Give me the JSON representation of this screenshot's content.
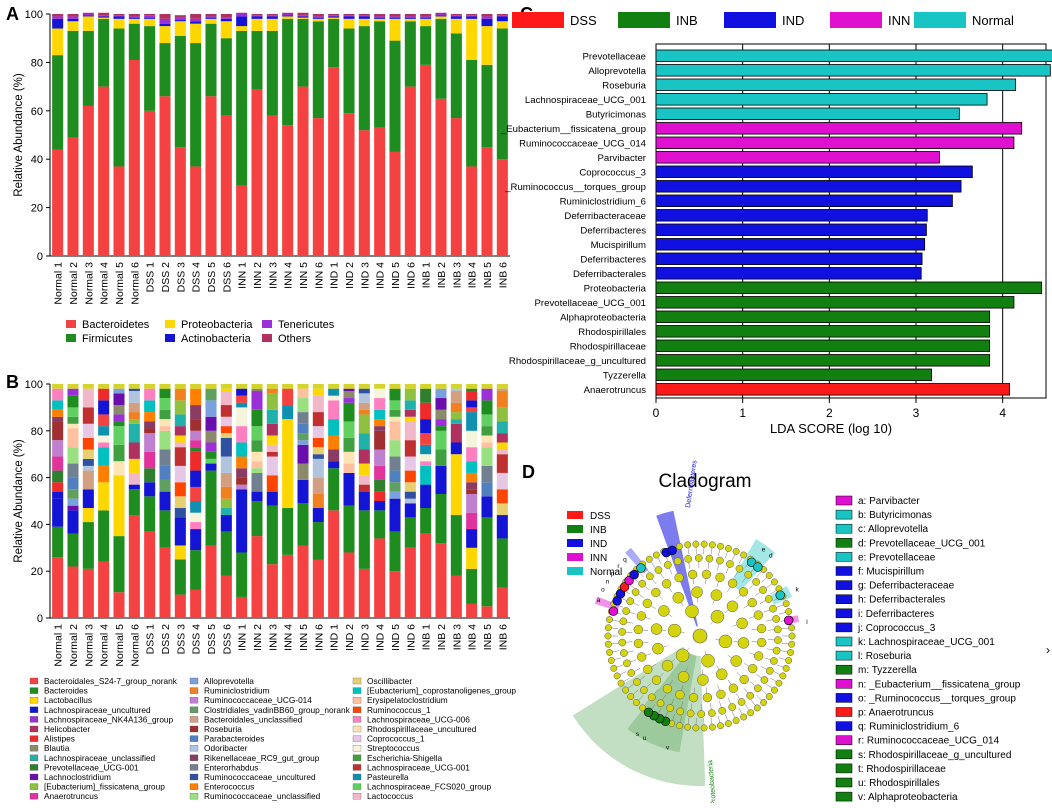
{
  "panels": {
    "A": "A",
    "B": "B",
    "C": "C",
    "D": "D"
  },
  "chart_data": [
    {
      "id": "A",
      "type": "bar",
      "stacked": true,
      "ylabel": "Relative Abundance (%)",
      "ylim": [
        0,
        100
      ],
      "yticks": [
        0,
        20,
        40,
        60,
        80,
        100
      ],
      "categories": [
        "Normal 1",
        "Normal 2",
        "Normal 3",
        "Normal 4",
        "Normal 5",
        "Normal 6",
        "DSS 1",
        "DSS 2",
        "DSS 3",
        "DSS 4",
        "DSS 5",
        "DSS 6",
        "INN 1",
        "INN 2",
        "INN 3",
        "INN 4",
        "INN 5",
        "INN 6",
        "IND 1",
        "IND 2",
        "IND 3",
        "IND 4",
        "IND 5",
        "IND 6",
        "INB 1",
        "INB 2",
        "INB 3",
        "INB 4",
        "INB 5",
        "INB 6"
      ],
      "series": [
        {
          "name": "Bacteroidetes",
          "color": "#f44141",
          "values": [
            44,
            49,
            62,
            70,
            37,
            81,
            60,
            66,
            45,
            37,
            66,
            58,
            29,
            69,
            58,
            54,
            70,
            57,
            78,
            59,
            52,
            53,
            43,
            70,
            79,
            65,
            57,
            37,
            45,
            40
          ]
        },
        {
          "name": "Firmicutes",
          "color": "#1e8c1e",
          "values": [
            39,
            44,
            31,
            28,
            57,
            15,
            35,
            22,
            46,
            51,
            30,
            32,
            64,
            24,
            35,
            44,
            28,
            40,
            20,
            35,
            43,
            44,
            46,
            27,
            16,
            33,
            35,
            44,
            34,
            54
          ]
        },
        {
          "name": "Proteobacteria",
          "color": "#ffd700",
          "values": [
            11,
            4,
            6,
            0.5,
            4,
            2,
            3,
            7,
            6,
            8,
            2,
            7,
            2,
            5,
            5,
            1,
            0.5,
            1,
            0.5,
            4,
            3,
            1,
            9,
            1,
            3,
            1,
            6,
            17,
            16,
            3
          ]
        },
        {
          "name": "Actinobacteria",
          "color": "#1414d4",
          "values": [
            4,
            1,
            0.5,
            0.5,
            1,
            0.5,
            0.5,
            1,
            0.5,
            1,
            0.5,
            1,
            4,
            1,
            1,
            0.5,
            0.5,
            0.5,
            0.5,
            1,
            1,
            0.5,
            0.5,
            0.5,
            0.5,
            0.5,
            1,
            1,
            3,
            2
          ]
        },
        {
          "name": "Tenericutes",
          "color": "#9b30d9",
          "values": [
            1,
            1,
            0.5,
            0.5,
            0.5,
            0.5,
            1,
            2,
            1,
            1,
            0.5,
            0.5,
            1,
            0.5,
            0.5,
            0.5,
            0.5,
            0.5,
            0.5,
            0.5,
            0.5,
            0.5,
            0.5,
            0.5,
            0.5,
            0.5,
            0.5,
            0.5,
            1,
            0.5
          ]
        },
        {
          "name": "Others",
          "color": "#b03060",
          "values": [
            1,
            1,
            0.5,
            1,
            0.5,
            1,
            0.5,
            2,
            1,
            2,
            1,
            1.5,
            0.5,
            0.5,
            0.5,
            0.5,
            1,
            1,
            0.5,
            0.5,
            0.5,
            1,
            1,
            1,
            1,
            0.5,
            0.5,
            0.5,
            1,
            0.5
          ]
        }
      ],
      "legend": [
        {
          "name": "Bacteroidetes",
          "color": "#f44141"
        },
        {
          "name": "Proteobacteria",
          "color": "#ffd700"
        },
        {
          "name": "Tenericutes",
          "color": "#9b30d9"
        },
        {
          "name": "Firmicutes",
          "color": "#1e8c1e"
        },
        {
          "name": "Actinobacteria",
          "color": "#1414d4"
        },
        {
          "name": "Others",
          "color": "#b03060"
        }
      ]
    },
    {
      "id": "B",
      "type": "bar",
      "stacked": true,
      "ylabel": "Relative Abundance (%)",
      "ylim": [
        0,
        100
      ],
      "yticks": [
        0,
        20,
        40,
        60,
        80,
        100
      ],
      "categories": [
        "Normal 1",
        "Normal 2",
        "Normal 3",
        "Normal 4",
        "Normal 5",
        "Normal 6",
        "DSS 1",
        "DSS 2",
        "DSS 3",
        "DSS 4",
        "DSS 5",
        "DSS 6",
        "INN 1",
        "INN 2",
        "INN 3",
        "INN 4",
        "INN 5",
        "INN 6",
        "IND 1",
        "IND 2",
        "IND 3",
        "IND 4",
        "IND 5",
        "IND 6",
        "INB 1",
        "INB 2",
        "INB 3",
        "INB 4",
        "INB 5",
        "INB 6"
      ],
      "bottom_red": [
        26,
        22,
        21,
        24,
        11,
        44,
        37,
        30,
        10,
        12,
        31,
        18,
        9,
        35,
        23,
        27,
        31,
        25,
        46,
        28,
        21,
        34,
        20,
        30,
        36,
        32,
        18,
        6,
        5,
        13
      ],
      "middle_green": [
        13,
        14,
        20,
        22,
        24,
        11,
        15,
        16,
        15,
        17,
        32,
        19,
        19,
        15,
        25,
        20,
        18,
        16,
        18,
        20,
        25,
        12,
        17,
        13,
        11,
        21,
        26,
        15,
        38,
        21
      ],
      "accent_layer": [
        {
          "color": "#ffd700",
          "values": [
            0,
            0,
            6,
            12,
            26,
            0,
            0,
            0,
            6,
            0,
            0,
            0,
            0,
            0,
            0,
            38,
            0,
            0,
            0,
            0,
            0,
            0,
            0,
            0,
            0,
            0,
            26,
            9,
            0,
            0
          ]
        },
        {
          "color": "#1414d4",
          "values": [
            12,
            10,
            8,
            0,
            0,
            2,
            6,
            8,
            12,
            9,
            3,
            7,
            27,
            4,
            6,
            0,
            10,
            6,
            3,
            14,
            8,
            4,
            14,
            6,
            10,
            12,
            5,
            8,
            9,
            10
          ]
        }
      ],
      "upper_total": 98,
      "legend": [
        {
          "name": "Bacteroidales_S24-7_group_norank",
          "color": "#f44141"
        },
        {
          "name": "Bacteroides",
          "color": "#1e8c1e"
        },
        {
          "name": "Lactobacillus",
          "color": "#ffd700"
        },
        {
          "name": "Lachnospiraceae_uncultured",
          "color": "#1414d4"
        },
        {
          "name": "Lachnospiraceae_NK4A136_group",
          "color": "#9b30d9"
        },
        {
          "name": "Helicobacter",
          "color": "#b03060"
        },
        {
          "name": "Alistipes",
          "color": "#ee2a2a"
        },
        {
          "name": "Blautia",
          "color": "#8b8b6b"
        },
        {
          "name": "Lachnospiraceae_unclassified",
          "color": "#20b2aa"
        },
        {
          "name": "Prevotellaceae_UCG-001",
          "color": "#2f7f2f"
        },
        {
          "name": "Lachnoclostridium",
          "color": "#6a0dad"
        },
        {
          "name": "[Eubacterium]_fissicatena_group",
          "color": "#90c040"
        },
        {
          "name": "Anaerotruncus",
          "color": "#e0349c"
        },
        {
          "name": "Alloprevotella",
          "color": "#7aa0e0"
        },
        {
          "name": "Ruminiclostridium",
          "color": "#f08020"
        },
        {
          "name": "Ruminococcaceae_UCG-014",
          "color": "#c080d0"
        },
        {
          "name": "Clostridiales_vadinBB60_group_norank",
          "color": "#5f9f5f"
        },
        {
          "name": "Bacteroidales_unclassified",
          "color": "#d2a080"
        },
        {
          "name": "Roseburia",
          "color": "#a03030"
        },
        {
          "name": "Parabacteroides",
          "color": "#5080c0"
        },
        {
          "name": "Odoribacter",
          "color": "#b0c4de"
        },
        {
          "name": "Rikenellaceae_RC9_gut_group",
          "color": "#8b3a62"
        },
        {
          "name": "Enterorhabdus",
          "color": "#708090"
        },
        {
          "name": "Ruminococcaceae_uncultured",
          "color": "#3050a0"
        },
        {
          "name": "Enterococcus",
          "color": "#ff7f00"
        },
        {
          "name": "Ruminococcaceae_unclassified",
          "color": "#98e080"
        },
        {
          "name": "Oscillibacter",
          "color": "#e8d070"
        },
        {
          "name": "[Eubacterium]_coprostanoligenes_group",
          "color": "#00c0c0"
        },
        {
          "name": "Erysipelatoclostridium",
          "color": "#ffc0a0"
        },
        {
          "name": "Ruminococcus_1",
          "color": "#ff4500"
        },
        {
          "name": "Lachnospiraceae_UCG-006",
          "color": "#ff80c0"
        },
        {
          "name": "Rhodospirillaceae_uncultured",
          "color": "#ffe4b5"
        },
        {
          "name": "Coprococcus_1",
          "color": "#e6c8e6"
        },
        {
          "name": "Streptococcus",
          "color": "#f5f5dc"
        },
        {
          "name": "Escherichia-Shigella",
          "color": "#40a040"
        },
        {
          "name": "Lachnospiraceae_UCG-001",
          "color": "#c03030"
        },
        {
          "name": "Pasteurella",
          "color": "#1090b0"
        },
        {
          "name": "Lachnospiraceae_FCS020_group",
          "color": "#60d060"
        },
        {
          "name": "Lactococcus",
          "color": "#f0b8c8"
        }
      ]
    },
    {
      "id": "C",
      "type": "bar",
      "orientation": "horizontal",
      "xlabel": "LDA SCORE (log 10)",
      "xlim": [
        0,
        4.5
      ],
      "xticks": [
        0,
        1,
        2,
        3,
        4
      ],
      "legend": [
        {
          "name": "DSS",
          "color": "#ff1a1a"
        },
        {
          "name": "INB",
          "color": "#118011"
        },
        {
          "name": "IND",
          "color": "#1010e0"
        },
        {
          "name": "INN",
          "color": "#e010d0"
        },
        {
          "name": "Normal",
          "color": "#19c4c4"
        }
      ],
      "bars": [
        {
          "label": "Prevotellaceae",
          "value": 4.58,
          "group": "Normal"
        },
        {
          "label": "Alloprevotella",
          "value": 4.55,
          "group": "Normal"
        },
        {
          "label": "Roseburia",
          "value": 4.15,
          "group": "Normal"
        },
        {
          "label": "Lachnospiraceae_UCG_001",
          "value": 3.82,
          "group": "Normal"
        },
        {
          "label": "Butyricimonas",
          "value": 3.5,
          "group": "Normal"
        },
        {
          "label": "_Eubacterium__fissicatena_group",
          "value": 4.22,
          "group": "INN"
        },
        {
          "label": "Ruminococcaceae_UCG_014",
          "value": 4.13,
          "group": "INN"
        },
        {
          "label": "Parvibacter",
          "value": 3.27,
          "group": "INN"
        },
        {
          "label": "Coprococcus_3",
          "value": 3.65,
          "group": "IND"
        },
        {
          "label": "_Ruminococcus__torques_group",
          "value": 3.52,
          "group": "IND"
        },
        {
          "label": "Ruminiclostridium_6",
          "value": 3.42,
          "group": "IND"
        },
        {
          "label": "Deferribacteraceae",
          "value": 3.13,
          "group": "IND"
        },
        {
          "label": "Deferribacteres",
          "value": 3.12,
          "group": "IND"
        },
        {
          "label": "Mucispirillum",
          "value": 3.1,
          "group": "IND"
        },
        {
          "label": "Deferribacteres",
          "value": 3.07,
          "group": "IND"
        },
        {
          "label": "Deferribacterales",
          "value": 3.06,
          "group": "IND"
        },
        {
          "label": "Proteobacteria",
          "value": 4.45,
          "group": "INB"
        },
        {
          "label": "Prevotellaceae_UCG_001",
          "value": 4.13,
          "group": "INB"
        },
        {
          "label": "Alphaproteobacteria",
          "value": 3.85,
          "group": "INB"
        },
        {
          "label": "Rhodospirillales",
          "value": 3.85,
          "group": "INB"
        },
        {
          "label": "Rhodospirillaceae",
          "value": 3.85,
          "group": "INB"
        },
        {
          "label": "Rhodospirillaceae_g_uncultured",
          "value": 3.85,
          "group": "INB"
        },
        {
          "label": "Tyzzerella",
          "value": 3.18,
          "group": "INB"
        },
        {
          "label": "Anaerotruncus",
          "value": 4.08,
          "group": "DSS"
        }
      ]
    }
  ],
  "cladogram": {
    "title": "Cladogram",
    "legend": [
      {
        "name": "DSS",
        "color": "#ff1a1a"
      },
      {
        "name": "INB",
        "color": "#118011"
      },
      {
        "name": "IND",
        "color": "#1010e0"
      },
      {
        "name": "INN",
        "color": "#e010d0"
      },
      {
        "name": "Normal",
        "color": "#19c4c4"
      }
    ],
    "clade_labels": {
      "left": "Deferribacteres",
      "bottom": "Proteobacteria"
    },
    "node_letters": [
      "a",
      "b",
      "c",
      "d",
      "e",
      "f",
      "g",
      "h",
      "i",
      "j",
      "k",
      "l",
      "m",
      "n",
      "o",
      "p",
      "q",
      "r",
      "s",
      "t",
      "u",
      "v"
    ],
    "taxa": [
      {
        "key": "a",
        "name": "Parvibacter",
        "color": "#e010d0"
      },
      {
        "key": "b",
        "name": "Butyricimonas",
        "color": "#19c4c4"
      },
      {
        "key": "c",
        "name": "Alloprevotella",
        "color": "#19c4c4"
      },
      {
        "key": "d",
        "name": "Prevotellaceae_UCG_001",
        "color": "#118011"
      },
      {
        "key": "e",
        "name": "Prevotellaceae",
        "color": "#19c4c4"
      },
      {
        "key": "f",
        "name": "Mucispirillum",
        "color": "#1010e0"
      },
      {
        "key": "g",
        "name": "Deferribacteraceae",
        "color": "#1010e0"
      },
      {
        "key": "h",
        "name": "Deferribacterales",
        "color": "#1010e0"
      },
      {
        "key": "i",
        "name": "Deferribacteres",
        "color": "#1010e0"
      },
      {
        "key": "j",
        "name": "Coprococcus_3",
        "color": "#1010e0"
      },
      {
        "key": "k",
        "name": "Lachnospiraceae_UCG_001",
        "color": "#19c4c4"
      },
      {
        "key": "l",
        "name": "Roseburia",
        "color": "#19c4c4"
      },
      {
        "key": "m",
        "name": "Tyzzerella",
        "color": "#118011"
      },
      {
        "key": "n",
        "name": "_Eubacterium__fissicatena_group",
        "color": "#e010d0"
      },
      {
        "key": "o",
        "name": "_Ruminococcus__torques_group",
        "color": "#1010e0"
      },
      {
        "key": "p",
        "name": "Anaerotruncus",
        "color": "#ff1a1a"
      },
      {
        "key": "q",
        "name": "Ruminiclostridium_6",
        "color": "#1010e0"
      },
      {
        "key": "r",
        "name": "Ruminococcaceae_UCG_014",
        "color": "#e010d0"
      },
      {
        "key": "s",
        "name": "Rhodospirillaceae_g_uncultured",
        "color": "#118011"
      },
      {
        "key": "t",
        "name": "Rhodospirillaceae",
        "color": "#118011"
      },
      {
        "key": "u",
        "name": "Rhodospirillales",
        "color": "#118011"
      },
      {
        "key": "v",
        "name": "Alphaproteobacteria",
        "color": "#118011"
      }
    ],
    "stray_glyph": "›"
  }
}
